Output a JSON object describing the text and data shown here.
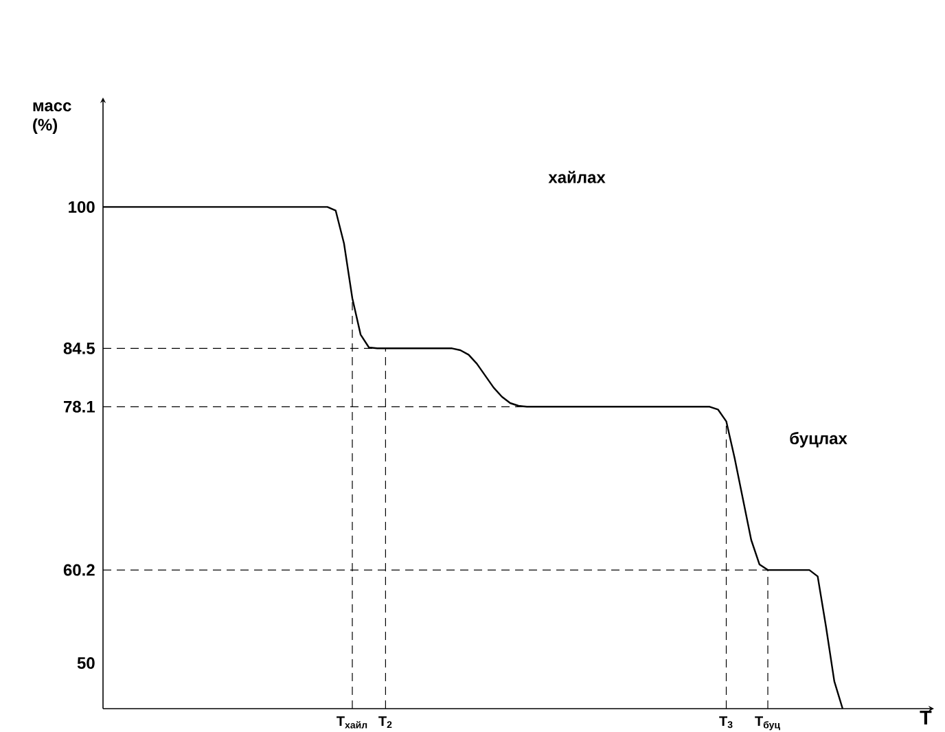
{
  "chart_data": {
    "type": "line",
    "xlabel": "T",
    "ylabel": "масс (%)",
    "categories": [
      null,
      null,
      null,
      null,
      null,
      null,
      null,
      null,
      null,
      null,
      null,
      null,
      null,
      null,
      null,
      null,
      null,
      null,
      null,
      null,
      null,
      null,
      null,
      null,
      null,
      null,
      null,
      null,
      null,
      null,
      "T$_{хайл}$",
      null,
      null,
      null,
      "T$_{2}$",
      null,
      null,
      null,
      null,
      null,
      null,
      null,
      null,
      null,
      null,
      null,
      null,
      null,
      null,
      null,
      null,
      null,
      null,
      null,
      null,
      null,
      null,
      null,
      null,
      null,
      null,
      null,
      null,
      null,
      null,
      null,
      null,
      null,
      null,
      null,
      null,
      null,
      null,
      null,
      null,
      "T$_{3}$",
      null,
      null,
      null,
      null,
      "T$_{буц}$",
      null,
      null,
      null,
      null,
      null,
      null,
      null,
      null,
      null,
      null,
      null,
      null,
      null,
      null,
      null,
      null,
      null,
      null,
      null
    ],
    "ylim": [
      45,
      112
    ],
    "yticks": [
      50,
      60.2,
      78.1,
      84.5,
      100
    ],
    "marker": "none",
    "series": [
      {
        "color": "#000000",
        "line_style": "solid",
        "values": [
          100,
          100,
          100,
          100,
          100,
          100,
          100,
          100,
          100,
          100,
          100,
          100,
          100,
          100,
          100,
          100,
          100,
          100,
          100,
          100,
          100,
          100,
          100,
          100,
          100,
          100,
          100,
          100,
          99.6,
          96,
          90,
          86,
          84.6,
          84.5,
          84.5,
          84.5,
          84.5,
          84.5,
          84.5,
          84.5,
          84.5,
          84.5,
          84.5,
          84.3,
          83.8,
          82.8,
          81.5,
          80.2,
          79.2,
          78.5,
          78.2,
          78.1,
          78.1,
          78.1,
          78.1,
          78.1,
          78.1,
          78.1,
          78.1,
          78.1,
          78.1,
          78.1,
          78.1,
          78.1,
          78.1,
          78.1,
          78.1,
          78.1,
          78.1,
          78.1,
          78.1,
          78.1,
          78.1,
          78.1,
          77.8,
          76.5,
          72.5,
          68,
          63.5,
          60.8,
          60.2,
          60.2,
          60.2,
          60.2,
          60.2,
          60.2,
          59.5,
          54,
          48,
          45,
          null,
          null,
          null,
          null,
          null,
          null,
          null,
          null,
          null,
          null
        ]
      }
    ],
    "ref_lines": [
      {
        "axis": "y",
        "value": 84.5,
        "color": "#000000",
        "line_style": "dashed"
      },
      {
        "axis": "y",
        "value": 78.1,
        "color": "#000000",
        "line_style": "dashed"
      },
      {
        "axis": "y",
        "value": 60.2,
        "color": "#000000",
        "line_style": "dashed"
      },
      {
        "axis": "x",
        "value": "T$_{хайл}$",
        "color": "#000000",
        "line_style": "dashed"
      },
      {
        "axis": "x",
        "value": "T$_{2}$",
        "color": "#000000",
        "line_style": "dashed"
      },
      {
        "axis": "x",
        "value": "T$_{3}$",
        "color": "#000000",
        "line_style": "dashed"
      },
      {
        "axis": "x",
        "value": "T$_{буц}$",
        "color": "#000000",
        "line_style": "dashed"
      }
    ],
    "annotations": [
      "хайлах",
      "буцлах"
    ]
  }
}
